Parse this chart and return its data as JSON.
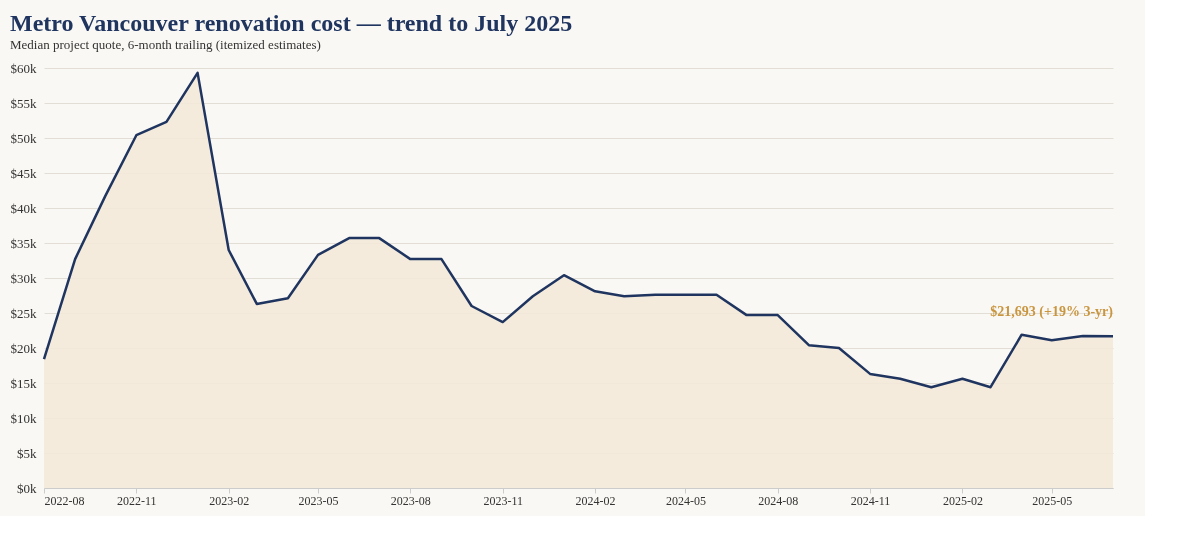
{
  "chart_data": {
    "type": "area",
    "title": "Metro Vancouver renovation cost — trend to July 2025",
    "subtitle": "Median project quote, 6-month trailing (itemized estimates)",
    "x": [
      "2022-08",
      "2022-09",
      "2022-10",
      "2022-11",
      "2022-12",
      "2023-01",
      "2023-02",
      "2023-03",
      "2023-04",
      "2023-05",
      "2023-06",
      "2023-07",
      "2023-08",
      "2023-09",
      "2023-10",
      "2023-11",
      "2023-12",
      "2024-01",
      "2024-02",
      "2024-03",
      "2024-04",
      "2024-05",
      "2024-06",
      "2024-07",
      "2024-08",
      "2024-09",
      "2024-10",
      "2024-11",
      "2024-12",
      "2025-01",
      "2025-02",
      "2025-03",
      "2025-04",
      "2025-05",
      "2025-06",
      "2025-07"
    ],
    "series": [
      {
        "color": "#1f3560",
        "values": [
          18400,
          32700,
          41700,
          50400,
          52300,
          59300,
          34000,
          26300,
          27100,
          33300,
          35700,
          35700,
          32700,
          32700,
          26000,
          23700,
          27400,
          30400,
          28100,
          27400,
          27600,
          27600,
          27600,
          24700,
          24700,
          20400,
          20000,
          16300,
          15600,
          14400,
          15600,
          14400,
          21900,
          21100,
          21700,
          21693
        ]
      }
    ],
    "xlim": [
      "2022-08",
      "2025-07"
    ],
    "xticks": [
      "2022-08",
      "2022-11",
      "2023-02",
      "2023-05",
      "2023-08",
      "2023-11",
      "2024-02",
      "2024-05",
      "2024-08",
      "2024-11",
      "2025-02",
      "2025-05"
    ],
    "ylim": [
      0,
      60000
    ],
    "yticks": [
      {
        "value": 0,
        "label": "$0k"
      },
      {
        "value": 5000,
        "label": "$5k"
      },
      {
        "value": 10000,
        "label": "$10k"
      },
      {
        "value": 15000,
        "label": "$15k"
      },
      {
        "value": 20000,
        "label": "$20k"
      },
      {
        "value": 25000,
        "label": "$25k"
      },
      {
        "value": 30000,
        "label": "$30k"
      },
      {
        "value": 35000,
        "label": "$35k"
      },
      {
        "value": 40000,
        "label": "$40k"
      },
      {
        "value": 45000,
        "label": "$45k"
      },
      {
        "value": 50000,
        "label": "$50k"
      },
      {
        "value": 55000,
        "label": "$55k"
      },
      {
        "value": 60000,
        "label": "$60k"
      }
    ],
    "grid": "y",
    "marker": "none",
    "line_style": "solid",
    "annotations": [
      {
        "text": "$21,693 (+19% 3-yr)",
        "x": "2025-07",
        "y": 21693
      }
    ]
  }
}
